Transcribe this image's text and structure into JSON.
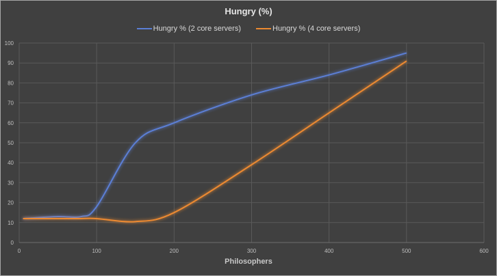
{
  "chart_data": {
    "type": "line",
    "title": "Hungry (%)",
    "xlabel": "Philosophers",
    "ylabel": "",
    "xlim": [
      0,
      600
    ],
    "ylim": [
      0,
      100
    ],
    "x_ticks": [
      0,
      100,
      200,
      300,
      400,
      500,
      600
    ],
    "y_ticks": [
      0,
      10,
      20,
      30,
      40,
      50,
      60,
      70,
      80,
      90,
      100
    ],
    "grid": true,
    "legend_position": "top",
    "smooth": true,
    "series": [
      {
        "name": "Hungry % (2 core servers)",
        "color": "#5b7fd6",
        "x": [
          5,
          50,
          80,
          100,
          150,
          200,
          300,
          400,
          500
        ],
        "values": [
          12,
          13,
          13,
          18,
          50,
          60,
          74,
          84,
          95
        ]
      },
      {
        "name": "Hungry % (4 core servers)",
        "color": "#ed8a30",
        "x": [
          5,
          50,
          80,
          100,
          150,
          200,
          300,
          400,
          500
        ],
        "values": [
          12,
          12,
          12,
          12,
          10.5,
          15,
          39,
          65,
          91
        ]
      }
    ]
  },
  "labels": {
    "title": "Hungry (%)",
    "xlabel": "Philosophers",
    "legend": [
      "Hungry % (2 core servers)",
      "Hungry % (4 core servers)"
    ]
  }
}
